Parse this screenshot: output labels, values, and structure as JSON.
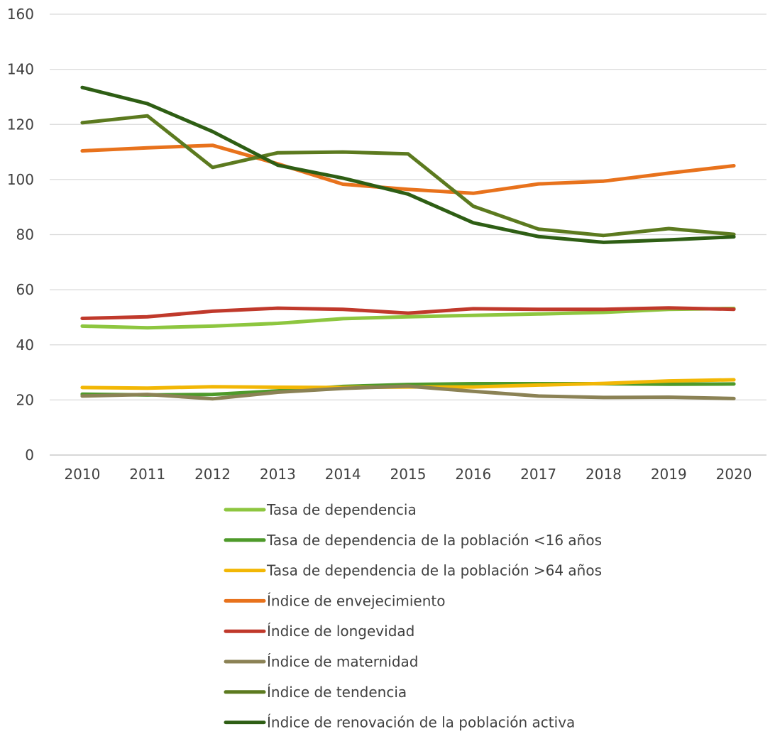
{
  "chart_data": {
    "type": "line",
    "title": "",
    "xlabel": "",
    "ylabel": "",
    "ylim": [
      0,
      160
    ],
    "yticks": [
      0,
      20,
      40,
      60,
      80,
      100,
      120,
      140,
      160
    ],
    "grid": true,
    "legend_position": "bottom",
    "categories": [
      "2010",
      "2011",
      "2012",
      "2013",
      "2014",
      "2015",
      "2016",
      "2017",
      "2018",
      "2019",
      "2020"
    ],
    "series": [
      {
        "name": "Tasa de dependencia",
        "color": "#8DC63F",
        "values": [
          46.8,
          46.2,
          46.8,
          47.8,
          49.5,
          50.2,
          50.7,
          51.2,
          51.8,
          52.9,
          53.2
        ]
      },
      {
        "name": "Tasa de dependencia de la población <16 años",
        "color": "#4E9A2A",
        "values": [
          22.1,
          21.8,
          22.0,
          23.3,
          24.9,
          25.6,
          25.9,
          25.9,
          25.9,
          25.7,
          25.8
        ]
      },
      {
        "name": "Tasa de dependencia de la población >64 años",
        "color": "#F2B705",
        "values": [
          24.5,
          24.3,
          24.8,
          24.6,
          24.5,
          24.7,
          24.7,
          25.4,
          26.0,
          26.9,
          27.3
        ]
      },
      {
        "name": "Índice de envejecimiento",
        "color": "#E8721C",
        "values": [
          110.4,
          111.5,
          112.4,
          105.7,
          98.3,
          96.4,
          95.0,
          98.4,
          99.4,
          102.3,
          105.0
        ]
      },
      {
        "name": "Índice de longevidad",
        "color": "#C0392B",
        "values": [
          49.6,
          50.2,
          52.2,
          53.3,
          52.9,
          51.5,
          53.1,
          52.9,
          52.9,
          53.4,
          52.9
        ]
      },
      {
        "name": "Índice de maternidad",
        "color": "#8B8255",
        "values": [
          21.4,
          22.0,
          20.4,
          22.8,
          24.2,
          25.0,
          23.1,
          21.4,
          20.9,
          21.0,
          20.5
        ]
      },
      {
        "name": "Índice de tendencia",
        "color": "#5C7A1F",
        "values": [
          120.6,
          123.1,
          104.4,
          109.7,
          110.0,
          109.3,
          90.3,
          82.0,
          79.7,
          82.2,
          80.1
        ]
      },
      {
        "name": "Índice de renovación de la población activa",
        "color": "#2E5E14",
        "values": [
          133.4,
          127.5,
          117.4,
          105.2,
          100.5,
          94.7,
          84.3,
          79.3,
          77.2,
          78.1,
          79.2
        ]
      }
    ]
  }
}
